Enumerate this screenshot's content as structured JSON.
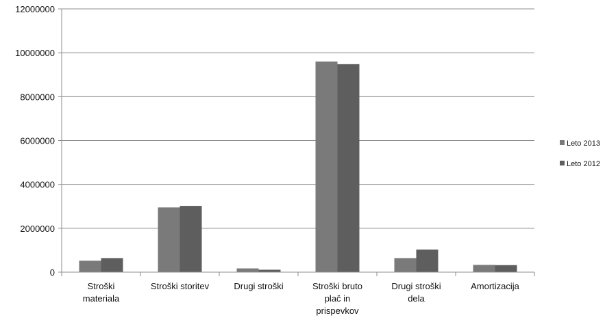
{
  "chart_data": {
    "type": "bar",
    "categories": [
      [
        "Stroški",
        "materiala"
      ],
      [
        "Stroški storitev"
      ],
      [
        "Drugi stroški"
      ],
      [
        "Stroški bruto",
        "plač in",
        "prispevkov"
      ],
      [
        "Drugi stroški",
        "dela"
      ],
      [
        "Amortizacija"
      ]
    ],
    "series": [
      {
        "name": "Leto 2013",
        "color": "#7a7a7a",
        "values": [
          520000,
          2950000,
          170000,
          9600000,
          640000,
          330000
        ]
      },
      {
        "name": "Leto 2012",
        "color": "#5e5e5e",
        "values": [
          640000,
          3020000,
          110000,
          9480000,
          1030000,
          320000
        ]
      }
    ],
    "ylim": [
      0,
      12000000
    ],
    "yticks": [
      "0",
      "2000000",
      "4000000",
      "6000000",
      "8000000",
      "10000000",
      "12000000"
    ],
    "grid": true,
    "legend": "right"
  }
}
